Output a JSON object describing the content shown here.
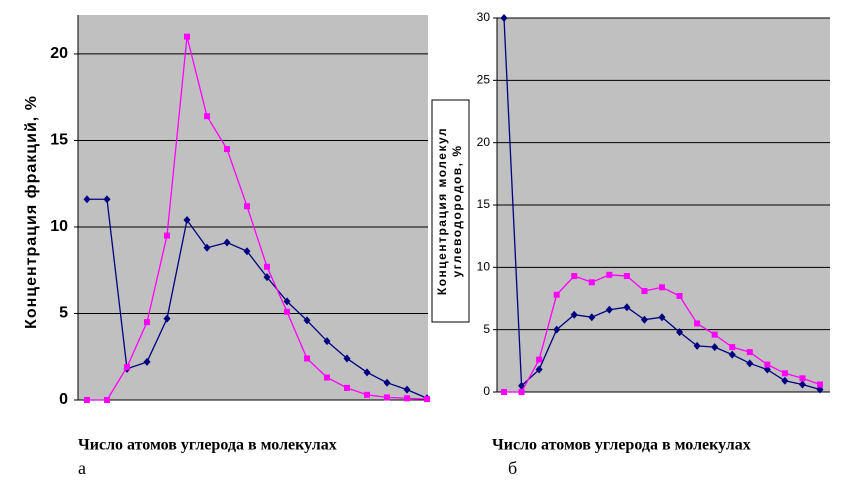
{
  "chart_data": [
    {
      "type": "line",
      "ylabel": "Концентрация фракций, %",
      "xlabel": "Число атомов углерода в молекулах",
      "panel_label": "а",
      "categories": [
        null,
        null,
        null,
        null,
        null,
        null,
        null,
        null,
        null,
        null,
        null,
        null,
        null,
        null,
        null,
        null,
        null,
        null
      ],
      "series": [
        {
          "color": "#000080",
          "marker": "diamond",
          "values": [
            11.6,
            11.6,
            1.8,
            2.2,
            4.7,
            10.4,
            8.8,
            9.1,
            8.6,
            7.1,
            5.7,
            4.6,
            3.4,
            2.4,
            1.6,
            1.0,
            0.6,
            0.1
          ]
        },
        {
          "color": "#ff00ff",
          "marker": "square",
          "values": [
            0,
            0,
            1.9,
            4.5,
            9.5,
            21,
            16.4,
            14.5,
            11.2,
            7.7,
            5.1,
            2.4,
            1.3,
            0.7,
            0.3,
            0.15,
            0.1,
            0.05
          ]
        }
      ],
      "ylim": [
        0,
        22.25
      ],
      "yticks": [
        0,
        5,
        10,
        15,
        20
      ],
      "grid": true
    },
    {
      "type": "line",
      "ylabel_lines": [
        "Концентрация молекул",
        "углеводородов, %"
      ],
      "xlabel": "Число атомов углерода в молекулах",
      "panel_label": "б",
      "categories": [
        null,
        null,
        null,
        null,
        null,
        null,
        null,
        null,
        null,
        null,
        null,
        null,
        null,
        null,
        null,
        null,
        null,
        null,
        null
      ],
      "series": [
        {
          "color": "#000080",
          "marker": "diamond",
          "values": [
            30,
            0.5,
            1.8,
            5,
            6.2,
            6,
            6.6,
            6.8,
            5.8,
            6,
            4.8,
            3.7,
            3.6,
            3,
            2.3,
            1.8,
            0.9,
            0.6,
            0.2
          ]
        },
        {
          "color": "#ff00ff",
          "marker": "square",
          "values": [
            0,
            0,
            2.6,
            7.8,
            9.3,
            8.8,
            9.4,
            9.3,
            8.1,
            8.4,
            7.7,
            5.5,
            4.6,
            3.6,
            3.2,
            2.2,
            1.5,
            1.1,
            0.6
          ]
        }
      ],
      "ylim": [
        0,
        30
      ],
      "yticks": [
        0,
        5,
        10,
        15,
        20,
        25,
        30
      ],
      "grid": true
    }
  ]
}
